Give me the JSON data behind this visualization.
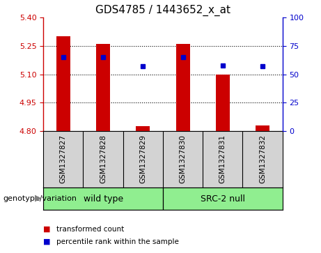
{
  "title": "GDS4785 / 1443652_x_at",
  "samples": [
    "GSM1327827",
    "GSM1327828",
    "GSM1327829",
    "GSM1327830",
    "GSM1327831",
    "GSM1327832"
  ],
  "bar_values": [
    5.3,
    5.26,
    4.825,
    5.26,
    5.1,
    4.83
  ],
  "bar_base": 4.8,
  "percentile_values": [
    65,
    65,
    57,
    65,
    58,
    57
  ],
  "ylim_left": [
    4.8,
    5.4
  ],
  "ylim_right": [
    0,
    100
  ],
  "yticks_left": [
    4.8,
    4.95,
    5.1,
    5.25,
    5.4
  ],
  "yticks_right": [
    0,
    25,
    50,
    75,
    100
  ],
  "bar_color": "#cc0000",
  "dot_color": "#0000cc",
  "grid_color": "#000000",
  "group_labels": [
    "wild type",
    "SRC-2 null"
  ],
  "group_ranges": [
    [
      0,
      2
    ],
    [
      3,
      5
    ]
  ],
  "group_color": "#90ee90",
  "genotype_label": "genotype/variation",
  "legend_items": [
    {
      "label": "transformed count",
      "color": "#cc0000"
    },
    {
      "label": "percentile rank within the sample",
      "color": "#0000cc"
    }
  ],
  "bg_color": "#d3d3d3",
  "plot_bg": "#ffffff",
  "right_axis_color": "#0000cc",
  "left_axis_color": "#cc0000"
}
